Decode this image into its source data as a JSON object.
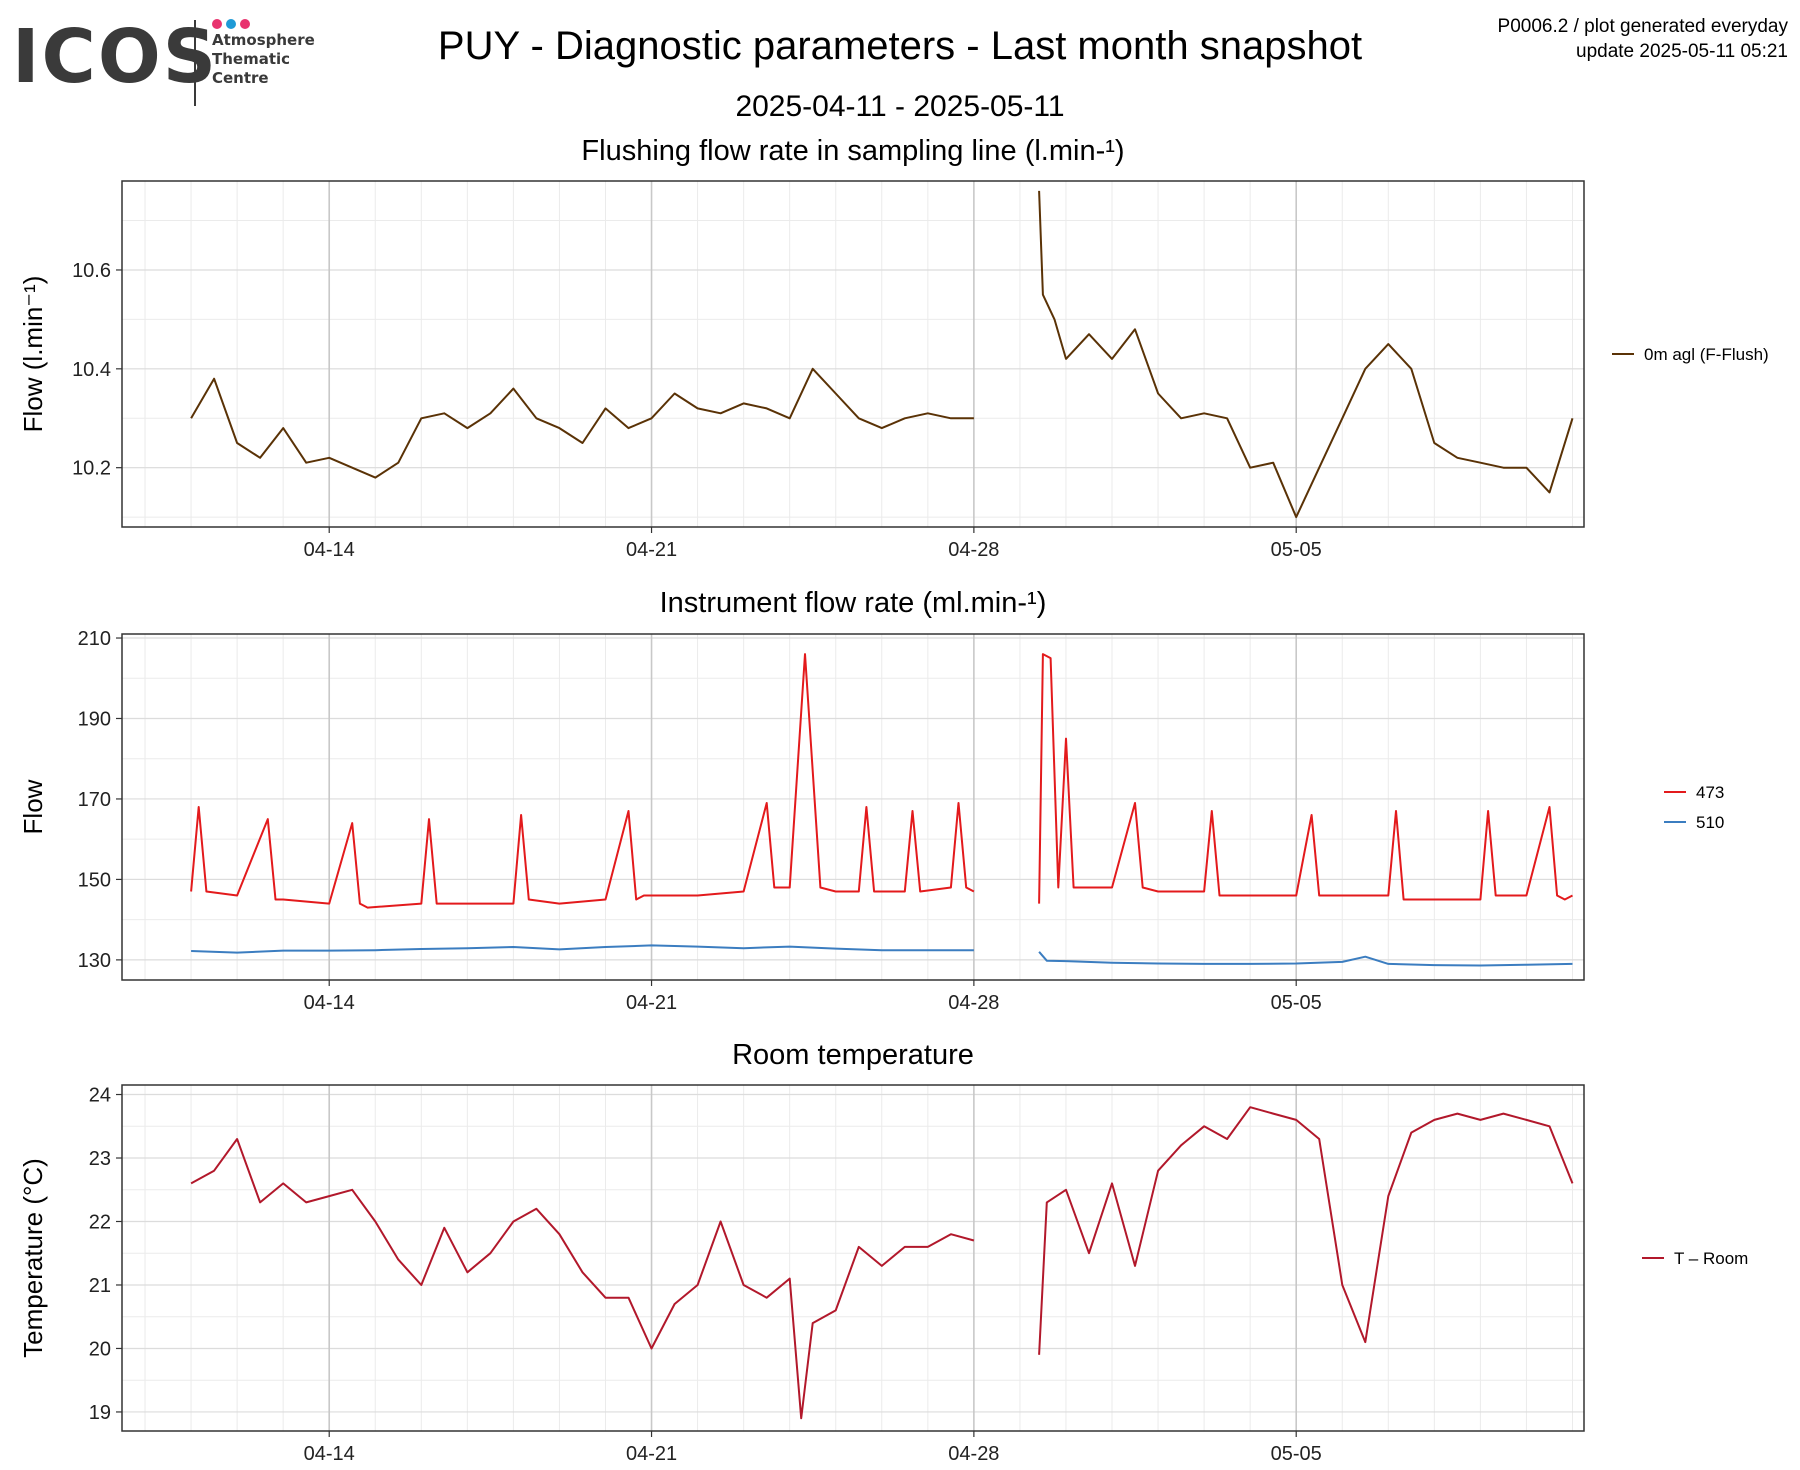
{
  "header": {
    "logo_word": "ICOS",
    "logo_lines": [
      "Atmosphere",
      "Thematic",
      "Centre"
    ],
    "logo_dot_colors": [
      "#e8336e",
      "#1e9ad6",
      "#e8336e"
    ],
    "title": "PUY - Diagnostic parameters - Last month snapshot",
    "date_range": "2025-04-11 - 2025-05-11",
    "meta_line1": "P0006.2 / plot generated everyday",
    "meta_line2": "update  2025-05-11 05:21"
  },
  "chart_data": [
    {
      "type": "line",
      "title": "Flushing flow rate in sampling line (l.min-¹)",
      "ylabel": "Flow (l.min⁻¹)",
      "xlim": [
        "2025-04-09T12:00",
        "2025-05-11T06:00"
      ],
      "ylim": [
        10.08,
        10.78
      ],
      "yticks": [
        10.2,
        10.4,
        10.6
      ],
      "ytick_labels": [
        "10.2",
        "10.4",
        "10.6"
      ],
      "xticks": [
        "2025-04-14",
        "2025-04-21",
        "2025-04-28",
        "2025-05-05"
      ],
      "xtick_labels": [
        "04-14",
        "04-21",
        "04-28",
        "05-05"
      ],
      "grid": true,
      "legend_position": "right",
      "series": [
        {
          "name": "0m agl (F-Flush)",
          "color": "#5a3206",
          "segments": [
            {
              "x": [
                "2025-04-11T00:00",
                "2025-04-11T12:00",
                "2025-04-12T00:00",
                "2025-04-12T12:00",
                "2025-04-13T00:00",
                "2025-04-13T12:00",
                "2025-04-14T00:00",
                "2025-04-14T12:00",
                "2025-04-15T00:00",
                "2025-04-15T12:00",
                "2025-04-16T00:00",
                "2025-04-16T12:00",
                "2025-04-17T00:00",
                "2025-04-17T12:00",
                "2025-04-18T00:00",
                "2025-04-18T12:00",
                "2025-04-19T00:00",
                "2025-04-19T12:00",
                "2025-04-20T00:00",
                "2025-04-20T12:00",
                "2025-04-21T00:00",
                "2025-04-21T12:00",
                "2025-04-22T00:00",
                "2025-04-22T12:00",
                "2025-04-23T00:00",
                "2025-04-23T12:00",
                "2025-04-24T00:00",
                "2025-04-24T12:00",
                "2025-04-25T00:00",
                "2025-04-25T12:00",
                "2025-04-26T00:00",
                "2025-04-26T12:00",
                "2025-04-27T00:00",
                "2025-04-27T12:00",
                "2025-04-28T00:00"
              ],
              "y": [
                10.3,
                10.38,
                10.25,
                10.22,
                10.28,
                10.21,
                10.22,
                10.2,
                10.18,
                10.21,
                10.3,
                10.31,
                10.28,
                10.31,
                10.36,
                10.3,
                10.28,
                10.25,
                10.32,
                10.28,
                10.3,
                10.35,
                10.32,
                10.31,
                10.33,
                10.32,
                10.3,
                10.4,
                10.35,
                10.3,
                10.28,
                10.3,
                10.31,
                10.3,
                10.3
              ]
            },
            {
              "x": [
                "2025-04-29T10:00",
                "2025-04-29T12:00",
                "2025-04-29T18:00",
                "2025-04-30T00:00",
                "2025-04-30T12:00",
                "2025-05-01T00:00",
                "2025-05-01T12:00",
                "2025-05-02T00:00",
                "2025-05-02T12:00",
                "2025-05-03T00:00",
                "2025-05-03T12:00",
                "2025-05-04T00:00",
                "2025-05-04T12:00",
                "2025-05-05T00:00",
                "2025-05-05T12:00",
                "2025-05-06T00:00",
                "2025-05-06T12:00",
                "2025-05-07T00:00",
                "2025-05-07T12:00",
                "2025-05-08T00:00",
                "2025-05-08T12:00",
                "2025-05-09T00:00",
                "2025-05-09T12:00",
                "2025-05-10T00:00",
                "2025-05-10T12:00",
                "2025-05-11T00:00"
              ],
              "y": [
                10.76,
                10.55,
                10.5,
                10.42,
                10.47,
                10.42,
                10.48,
                10.35,
                10.3,
                10.31,
                10.3,
                10.2,
                10.21,
                10.1,
                10.2,
                10.3,
                10.4,
                10.45,
                10.4,
                10.25,
                10.22,
                10.21,
                10.2,
                10.2,
                10.15,
                10.3
              ]
            }
          ]
        }
      ]
    },
    {
      "type": "line",
      "title": "Instrument flow rate (ml.min-¹)",
      "ylabel": "Flow",
      "xlim": [
        "2025-04-09T12:00",
        "2025-05-11T06:00"
      ],
      "ylim": [
        125,
        211
      ],
      "yticks": [
        130,
        150,
        170,
        190,
        210
      ],
      "ytick_labels": [
        "130",
        "150",
        "170",
        "190",
        "210"
      ],
      "xticks": [
        "2025-04-14",
        "2025-04-21",
        "2025-04-28",
        "2025-05-05"
      ],
      "xtick_labels": [
        "04-14",
        "04-21",
        "04-28",
        "05-05"
      ],
      "grid": true,
      "legend_position": "right",
      "series": [
        {
          "name": "473",
          "color": "#e31a1c",
          "segments": [
            {
              "x": [
                "2025-04-11T00:00",
                "2025-04-11T04:00",
                "2025-04-11T08:00",
                "2025-04-12T00:00",
                "2025-04-12T16:00",
                "2025-04-12T20:00",
                "2025-04-13T00:00",
                "2025-04-14T00:00",
                "2025-04-14T12:00",
                "2025-04-14T16:00",
                "2025-04-14T20:00",
                "2025-04-16T00:00",
                "2025-04-16T04:00",
                "2025-04-16T08:00",
                "2025-04-17T00:00",
                "2025-04-18T00:00",
                "2025-04-18T04:00",
                "2025-04-18T08:00",
                "2025-04-19T00:00",
                "2025-04-20T00:00",
                "2025-04-20T12:00",
                "2025-04-20T16:00",
                "2025-04-20T20:00",
                "2025-04-22T00:00",
                "2025-04-23T00:00",
                "2025-04-23T12:00",
                "2025-04-23T16:00",
                "2025-04-24T00:00",
                "2025-04-24T08:00",
                "2025-04-24T16:00",
                "2025-04-25T00:00",
                "2025-04-25T12:00",
                "2025-04-25T16:00",
                "2025-04-25T20:00",
                "2025-04-26T12:00",
                "2025-04-26T16:00",
                "2025-04-26T20:00",
                "2025-04-27T12:00",
                "2025-04-27T16:00",
                "2025-04-27T20:00",
                "2025-04-28T00:00"
              ],
              "y": [
                147,
                168,
                147,
                146,
                165,
                145,
                145,
                144,
                164,
                144,
                143,
                144,
                165,
                144,
                144,
                144,
                166,
                145,
                144,
                145,
                167,
                145,
                146,
                146,
                147,
                169,
                148,
                148,
                206,
                148,
                147,
                147,
                168,
                147,
                147,
                167,
                147,
                148,
                169,
                148,
                147
              ]
            },
            {
              "x": [
                "2025-04-29T10:00",
                "2025-04-29T12:00",
                "2025-04-29T16:00",
                "2025-04-29T20:00",
                "2025-04-30T00:00",
                "2025-04-30T04:00",
                "2025-04-30T08:00",
                "2025-05-01T00:00",
                "2025-05-01T12:00",
                "2025-05-01T16:00",
                "2025-05-02T00:00",
                "2025-05-03T00:00",
                "2025-05-03T04:00",
                "2025-05-03T08:00",
                "2025-05-04T00:00",
                "2025-05-05T00:00",
                "2025-05-05T08:00",
                "2025-05-05T12:00",
                "2025-05-06T00:00",
                "2025-05-07T00:00",
                "2025-05-07T04:00",
                "2025-05-07T08:00",
                "2025-05-08T00:00",
                "2025-05-09T00:00",
                "2025-05-09T04:00",
                "2025-05-09T08:00",
                "2025-05-10T00:00",
                "2025-05-10T12:00",
                "2025-05-10T16:00",
                "2025-05-10T20:00",
                "2025-05-11T00:00"
              ],
              "y": [
                144,
                206,
                205,
                148,
                185,
                148,
                148,
                148,
                169,
                148,
                147,
                147,
                167,
                146,
                146,
                146,
                166,
                146,
                146,
                146,
                167,
                145,
                145,
                145,
                167,
                146,
                146,
                168,
                146,
                145,
                146
              ]
            }
          ]
        },
        {
          "name": "510",
          "color": "#3b7dc0",
          "segments": [
            {
              "x": [
                "2025-04-11T00:00",
                "2025-04-12T00:00",
                "2025-04-13T00:00",
                "2025-04-14T00:00",
                "2025-04-15T00:00",
                "2025-04-16T00:00",
                "2025-04-17T00:00",
                "2025-04-18T00:00",
                "2025-04-19T00:00",
                "2025-04-20T00:00",
                "2025-04-21T00:00",
                "2025-04-22T00:00",
                "2025-04-23T00:00",
                "2025-04-24T00:00",
                "2025-04-25T00:00",
                "2025-04-26T00:00",
                "2025-04-27T00:00",
                "2025-04-28T00:00"
              ],
              "y": [
                132.2,
                131.8,
                132.3,
                132.3,
                132.4,
                132.7,
                132.9,
                133.2,
                132.6,
                133.2,
                133.6,
                133.3,
                132.9,
                133.3,
                132.8,
                132.4,
                132.4,
                132.4
              ]
            },
            {
              "x": [
                "2025-04-29T10:00",
                "2025-04-29T14:00",
                "2025-04-30T00:00",
                "2025-05-01T00:00",
                "2025-05-02T00:00",
                "2025-05-03T00:00",
                "2025-05-04T00:00",
                "2025-05-05T00:00",
                "2025-05-06T00:00",
                "2025-05-06T12:00",
                "2025-05-07T00:00",
                "2025-05-08T00:00",
                "2025-05-09T00:00",
                "2025-05-10T00:00",
                "2025-05-11T00:00"
              ],
              "y": [
                132,
                129.8,
                129.7,
                129.3,
                129.1,
                129.0,
                129.0,
                129.1,
                129.5,
                130.8,
                129.0,
                128.7,
                128.6,
                128.8,
                129.0
              ]
            }
          ]
        }
      ]
    },
    {
      "type": "line",
      "title": "Room temperature",
      "ylabel": "Temperature (°C)",
      "xlim": [
        "2025-04-09T12:00",
        "2025-05-11T06:00"
      ],
      "ylim": [
        18.7,
        24.15
      ],
      "yticks": [
        19,
        20,
        21,
        22,
        23,
        24
      ],
      "ytick_labels": [
        "19",
        "20",
        "21",
        "22",
        "23",
        "24"
      ],
      "xticks": [
        "2025-04-14",
        "2025-04-21",
        "2025-04-28",
        "2025-05-05"
      ],
      "xtick_labels": [
        "04-14",
        "04-21",
        "04-28",
        "05-05"
      ],
      "grid": true,
      "legend_position": "right",
      "series": [
        {
          "name": "T – Room",
          "color": "#b2182b",
          "segments": [
            {
              "x": [
                "2025-04-11T00:00",
                "2025-04-11T12:00",
                "2025-04-12T00:00",
                "2025-04-12T12:00",
                "2025-04-13T00:00",
                "2025-04-13T12:00",
                "2025-04-14T00:00",
                "2025-04-14T12:00",
                "2025-04-15T00:00",
                "2025-04-15T12:00",
                "2025-04-16T00:00",
                "2025-04-16T12:00",
                "2025-04-17T00:00",
                "2025-04-17T12:00",
                "2025-04-18T00:00",
                "2025-04-18T12:00",
                "2025-04-19T00:00",
                "2025-04-19T12:00",
                "2025-04-20T00:00",
                "2025-04-20T12:00",
                "2025-04-21T00:00",
                "2025-04-21T12:00",
                "2025-04-22T00:00",
                "2025-04-22T12:00",
                "2025-04-23T00:00",
                "2025-04-23T12:00",
                "2025-04-24T00:00",
                "2025-04-24T06:00",
                "2025-04-24T12:00",
                "2025-04-25T00:00",
                "2025-04-25T12:00",
                "2025-04-26T00:00",
                "2025-04-26T12:00",
                "2025-04-27T00:00",
                "2025-04-27T12:00",
                "2025-04-28T00:00"
              ],
              "y": [
                22.6,
                22.8,
                23.3,
                22.3,
                22.6,
                22.3,
                22.4,
                22.5,
                22.0,
                21.4,
                21.0,
                21.9,
                21.2,
                21.5,
                22.0,
                22.2,
                21.8,
                21.2,
                20.8,
                20.8,
                20.0,
                20.7,
                21.0,
                22.0,
                21.0,
                20.8,
                21.1,
                18.9,
                20.4,
                20.6,
                21.6,
                21.3,
                21.6,
                21.6,
                21.8,
                21.7
              ]
            },
            {
              "x": [
                "2025-04-29T10:00",
                "2025-04-29T14:00",
                "2025-04-30T00:00",
                "2025-04-30T12:00",
                "2025-05-01T00:00",
                "2025-05-01T12:00",
                "2025-05-02T00:00",
                "2025-05-02T12:00",
                "2025-05-03T00:00",
                "2025-05-03T12:00",
                "2025-05-04T00:00",
                "2025-05-04T12:00",
                "2025-05-05T00:00",
                "2025-05-05T12:00",
                "2025-05-06T00:00",
                "2025-05-06T12:00",
                "2025-05-07T00:00",
                "2025-05-07T12:00",
                "2025-05-08T00:00",
                "2025-05-08T12:00",
                "2025-05-09T00:00",
                "2025-05-09T12:00",
                "2025-05-10T00:00",
                "2025-05-10T12:00",
                "2025-05-11T00:00"
              ],
              "y": [
                19.9,
                22.3,
                22.5,
                21.5,
                22.6,
                21.3,
                22.8,
                23.2,
                23.5,
                23.3,
                23.8,
                23.7,
                23.6,
                23.3,
                21.0,
                20.1,
                22.4,
                23.4,
                23.6,
                23.7,
                23.6,
                23.7,
                23.6,
                23.5,
                22.6
              ]
            }
          ]
        }
      ]
    }
  ]
}
